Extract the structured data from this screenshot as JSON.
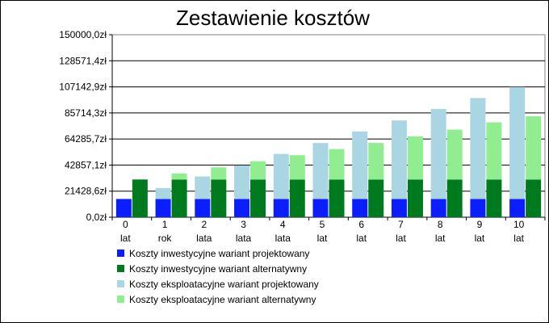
{
  "chart_data": {
    "type": "bar",
    "title": "Zestawienie kosztów",
    "xlabel": "",
    "ylabel": "",
    "ylim": [
      0,
      150000
    ],
    "y_ticks": [
      "0,0zł",
      "21428,6zł",
      "42857,1zł",
      "64285,7zł",
      "85714,3zł",
      "107142,9zł",
      "128571,4zł",
      "150000,0zł"
    ],
    "categories": [
      {
        "num": "0",
        "unit": "lat"
      },
      {
        "num": "1",
        "unit": "rok"
      },
      {
        "num": "2",
        "unit": "lata"
      },
      {
        "num": "3",
        "unit": "lata"
      },
      {
        "num": "4",
        "unit": "lata"
      },
      {
        "num": "5",
        "unit": "lat"
      },
      {
        "num": "6",
        "unit": "lat"
      },
      {
        "num": "7",
        "unit": "lat"
      },
      {
        "num": "8",
        "unit": "lat"
      },
      {
        "num": "9",
        "unit": "lat"
      },
      {
        "num": "10",
        "unit": "lat"
      }
    ],
    "grid": true,
    "legend_position": "bottom",
    "series": [
      {
        "name": "Koszty inwestycyjne wariant projektowany",
        "color": "#0a1eff",
        "values": [
          15000,
          15000,
          15000,
          15000,
          15000,
          15000,
          15000,
          15000,
          15000,
          15000,
          15000
        ]
      },
      {
        "name": "Koszty inwestycyjne wariant alternatywny",
        "color": "#007a1e",
        "values": [
          31000,
          31000,
          31000,
          31000,
          31000,
          31000,
          31000,
          31000,
          31000,
          31000,
          31000
        ]
      },
      {
        "name": "Koszty eksploatacyjne wariant projektowany",
        "color": "#aad6e4",
        "values": [
          0,
          9000,
          18500,
          27500,
          37000,
          46000,
          55500,
          64500,
          74000,
          83000,
          92000
        ]
      },
      {
        "name": "Koszty eksploatacyjne wariant alternatywny",
        "color": "#90ee90",
        "values": [
          0,
          5000,
          10000,
          15000,
          20000,
          25000,
          30000,
          35500,
          41000,
          47000,
          52000
        ]
      }
    ]
  }
}
